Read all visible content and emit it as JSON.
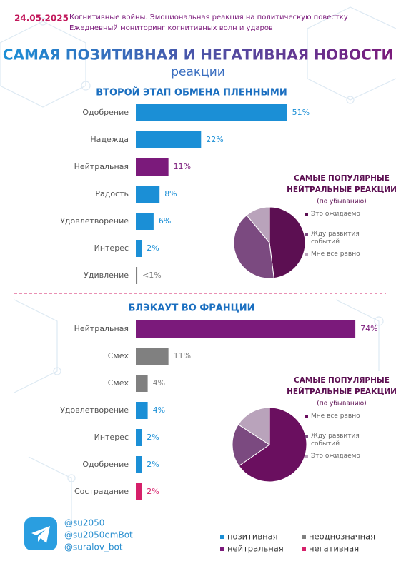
{
  "header": {
    "date": "24.05.2025",
    "subtitle": [
      "Когнитивные войны. Эмоциональная реакция на политическую повестку",
      "Ежедневный мониторинг когнитивных волн и ударов"
    ],
    "title": "САМАЯ ПОЗИТИВНАЯ И НЕГАТИВНАЯ НОВОСТИ",
    "title2": "реакции"
  },
  "chart_data": [
    {
      "type": "bar",
      "title": "ВТОРОЙ ЭТАП ОБМЕНА ПЛЕННЫМИ",
      "categories": [
        "Одобрение",
        "Надежда",
        "Нейтральная",
        "Радость",
        "Удовлетворение",
        "Интерес",
        "Удивление"
      ],
      "values": [
        51,
        22,
        11,
        8,
        6,
        2,
        0.5
      ],
      "value_labels": [
        "51%",
        "22%",
        "11%",
        "8%",
        "6%",
        "2%",
        "<1%"
      ],
      "colors": [
        "#1b8fd6",
        "#1b8fd6",
        "#7b1a7b",
        "#1b8fd6",
        "#1b8fd6",
        "#1b8fd6",
        "#808080"
      ]
    },
    {
      "type": "pie",
      "title": [
        "САМЫЕ ПОПУЛЯРНЫЕ",
        "НЕЙТРАЛЬНЫЕ РЕАКЦИИ"
      ],
      "subtitle": "(по убыванию)",
      "series": [
        {
          "name": "Это ожидаемо",
          "color": "#5c0f52",
          "values": [
            48
          ]
        },
        {
          "name": "Жду развития событий",
          "color": "#7b4a80",
          "values": [
            41
          ]
        },
        {
          "name": "Мне всё равно",
          "color": "#b9a3bb",
          "values": [
            11
          ]
        }
      ]
    },
    {
      "type": "bar",
      "title": "БЛЭКАУТ ВО ФРАНЦИИ",
      "categories": [
        "Нейтральная",
        "Смех",
        "Смех",
        "Удовлетворение",
        "Интерес",
        "Одобрение",
        "Сострадание"
      ],
      "values": [
        74,
        11,
        4,
        4,
        2,
        2,
        2
      ],
      "value_labels": [
        "74%",
        "11%",
        "4%",
        "4%",
        "2%",
        "2%",
        "2%"
      ],
      "colors": [
        "#7b1a7b",
        "#808080",
        "#808080",
        "#1b8fd6",
        "#1b8fd6",
        "#1b8fd6",
        "#d6206a"
      ]
    },
    {
      "type": "pie",
      "title": [
        "САМЫЕ ПОПУЛЯРНЫЕ",
        "НЕЙТРАЛЬНЫЕ РЕАКЦИИ"
      ],
      "subtitle": "(по убыванию)",
      "series": [
        {
          "name": "Мне всё равно",
          "color": "#6a0f5f",
          "values": [
            66
          ]
        },
        {
          "name": "Жду развития событий",
          "color": "#7b4a80",
          "values": [
            19
          ]
        },
        {
          "name": "Это ожидаемо",
          "color": "#b9a3bb",
          "values": [
            16
          ]
        }
      ]
    }
  ],
  "footer": {
    "handles": [
      "@su2050",
      "@su2050emBot",
      "@suralov_bot"
    ],
    "legend": [
      {
        "label": "позитивная",
        "color": "#1b8fd6"
      },
      {
        "label": "неоднозначная",
        "color": "#808080"
      },
      {
        "label": "нейтральная",
        "color": "#7b1a7b"
      },
      {
        "label": "негативная",
        "color": "#d6206a"
      }
    ]
  }
}
